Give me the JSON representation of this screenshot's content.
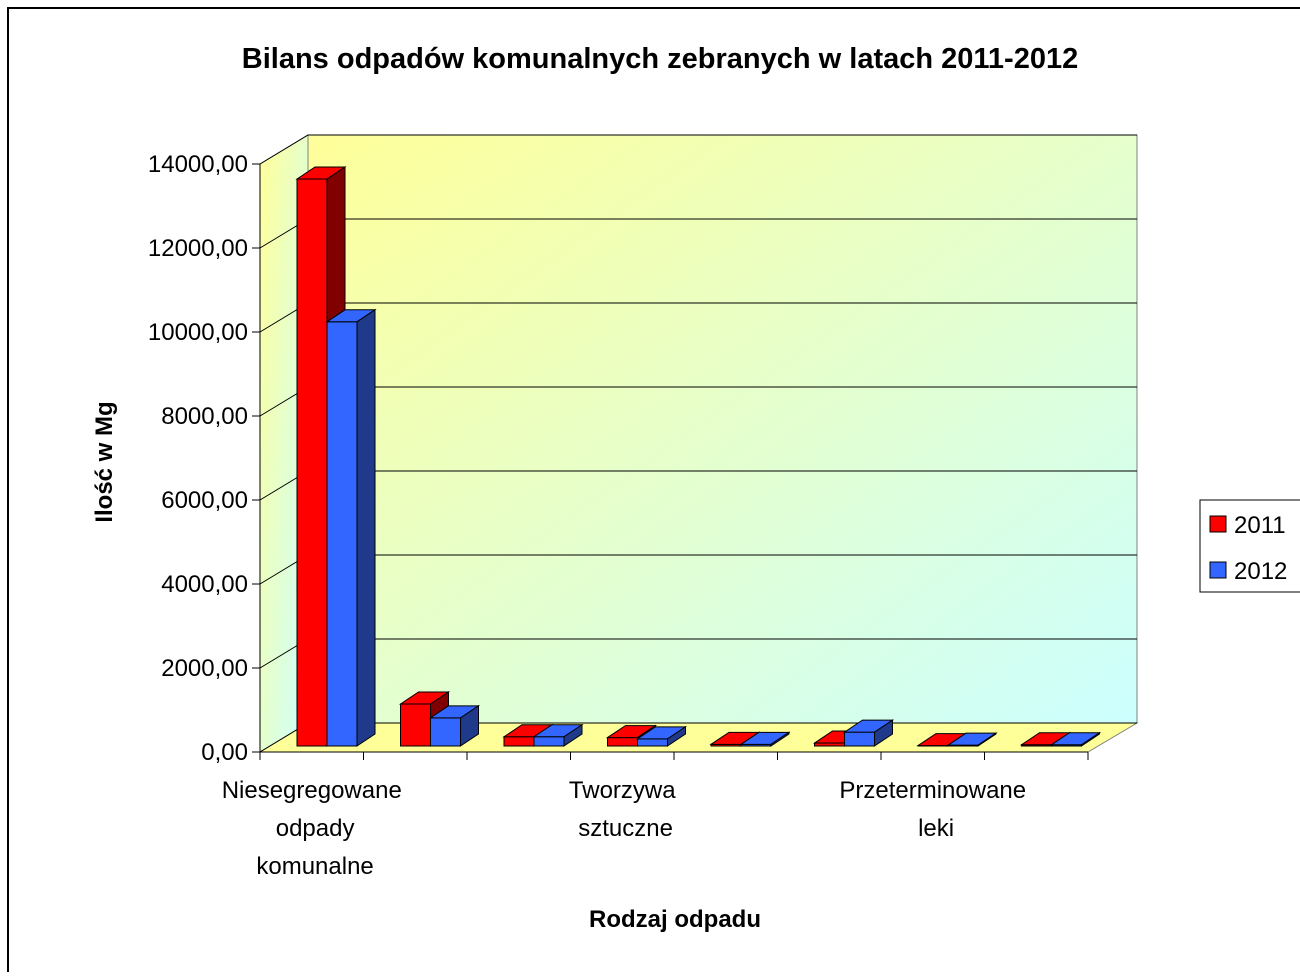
{
  "chart_data": {
    "type": "bar3d",
    "title": "Bilans odpadów komunalnych zebranych w latach 2011-2012",
    "x_label": "Rodzaj odpadu",
    "y_label": "Ilość w Mg",
    "categories": [
      "Niesegregowane odpady komunalne",
      null,
      null,
      "Tworzywa sztuczne",
      null,
      null,
      "Przeterminowane leki",
      null
    ],
    "series": [
      {
        "name": "2011",
        "color": "#ff0000",
        "side": "#800000",
        "values": [
          13500,
          1000,
          220,
          200,
          40,
          70,
          10,
          30
        ]
      },
      {
        "name": "2012",
        "color": "#3366ff",
        "side": "#1f3a8a",
        "values": [
          10100,
          670,
          220,
          170,
          40,
          330,
          20,
          30
        ]
      }
    ],
    "ylim": [
      0,
      14000
    ],
    "yticks": [
      {
        "value": 0,
        "label": "0,00"
      },
      {
        "value": 2000,
        "label": "2000,00"
      },
      {
        "value": 4000,
        "label": "4000,00"
      },
      {
        "value": 6000,
        "label": "6000,00"
      },
      {
        "value": 8000,
        "label": "8000,00"
      },
      {
        "value": 10000,
        "label": "10000,00"
      },
      {
        "value": 12000,
        "label": "12000,00"
      },
      {
        "value": 14000,
        "label": "14000,00"
      }
    ],
    "grid": true,
    "legend": "right"
  }
}
